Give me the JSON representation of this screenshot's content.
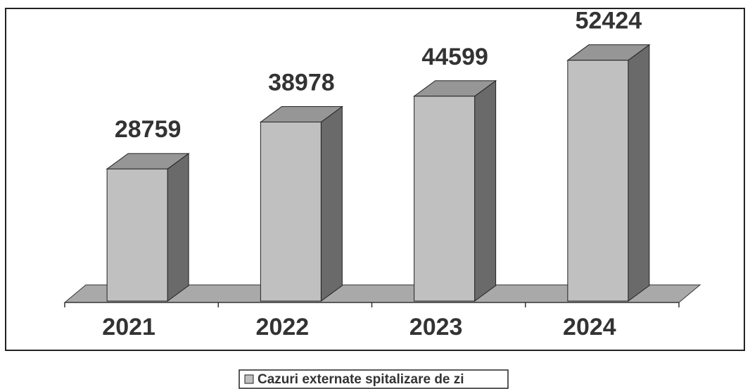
{
  "chart_data": {
    "type": "bar",
    "categories": [
      "2021",
      "2022",
      "2023",
      "2024"
    ],
    "series": [
      {
        "name": "Cazuri externate spitalizare de zi",
        "color": "#c0c0c0",
        "values": [
          28759,
          38978,
          44599,
          52424
        ]
      }
    ]
  }
}
